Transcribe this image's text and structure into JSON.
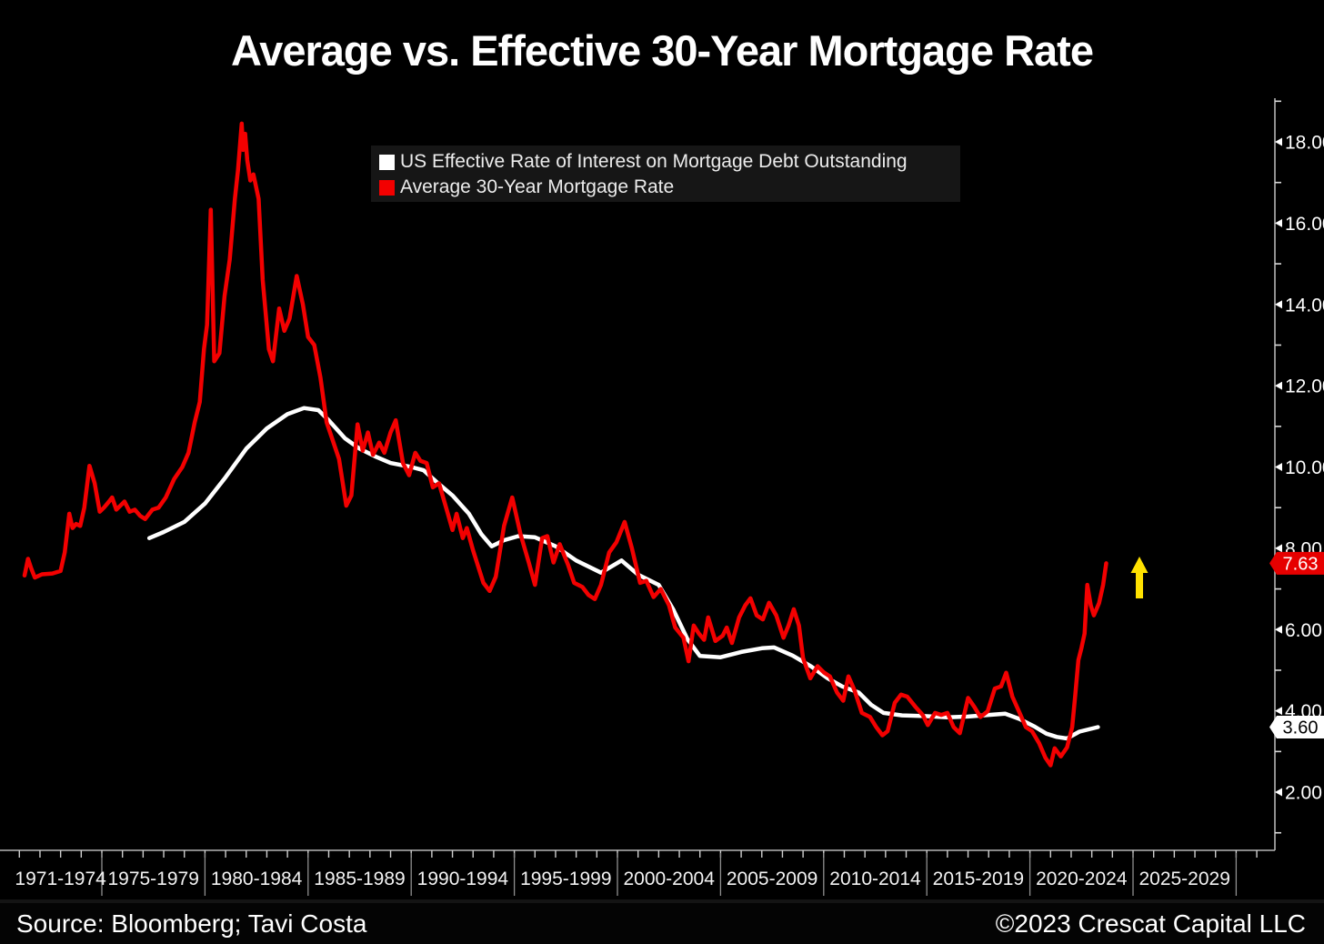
{
  "meta": {
    "title": "Average vs. Effective 30-Year Mortgage Rate"
  },
  "legend": {
    "items": [
      {
        "label": "US Effective Rate of Interest on Mortgage Debt Outstanding",
        "color": "#ffffff"
      },
      {
        "label": "Average 30-Year Mortgage Rate",
        "color": "#f30000"
      }
    ]
  },
  "footer": {
    "source": "Source: Bloomberg; Tavi Costa",
    "copyright": "©2023 Crescat Capital LLC"
  },
  "chart_data": {
    "type": "line",
    "title": "Average vs. Effective 30-Year Mortgage Rate",
    "grid": false,
    "legend_position": "top-center",
    "background_color": "#000000",
    "axis_color": "#b5b5b5",
    "x_categories": [
      "1971-1974",
      "1975-1979",
      "1980-1984",
      "1985-1989",
      "1990-1994",
      "1995-1999",
      "2000-2004",
      "2005-2009",
      "2010-2014",
      "2015-2019",
      "2020-2024",
      "2025-2029"
    ],
    "x_year_lim": [
      1971,
      2032
    ],
    "y_ticks_major": [
      18,
      16,
      14,
      12,
      10,
      8,
      6,
      4,
      2
    ],
    "y_ticks_minor": [
      19,
      17,
      15,
      13,
      11,
      9,
      7,
      5,
      3,
      1
    ],
    "y_tick_decimals": 2,
    "ylim": [
      0.55,
      19.0
    ],
    "annotations": [
      {
        "type": "up-arrow",
        "color": "#ffe100",
        "near_year": 2025.2,
        "at_value": 7.2
      }
    ],
    "series": [
      {
        "name": "US Effective Rate of Interest on Mortgage Debt Outstanding",
        "color": "#ffffff",
        "last_label": "3.60",
        "last_value": 3.6,
        "points": [
          [
            1977.3,
            8.25
          ],
          [
            1978,
            8.4
          ],
          [
            1979,
            8.65
          ],
          [
            1980,
            9.1
          ],
          [
            1981,
            9.75
          ],
          [
            1982,
            10.45
          ],
          [
            1983,
            10.95
          ],
          [
            1984,
            11.3
          ],
          [
            1984.8,
            11.45
          ],
          [
            1985.5,
            11.4
          ],
          [
            1986,
            11.15
          ],
          [
            1986.8,
            10.7
          ],
          [
            1987.5,
            10.45
          ],
          [
            1988.3,
            10.25
          ],
          [
            1989,
            10.1
          ],
          [
            1990,
            10.0
          ],
          [
            1990.6,
            9.92
          ],
          [
            1991.3,
            9.6
          ],
          [
            1992,
            9.3
          ],
          [
            1992.8,
            8.85
          ],
          [
            1993.4,
            8.35
          ],
          [
            1993.9,
            8.05
          ],
          [
            1994.5,
            8.2
          ],
          [
            1995.2,
            8.3
          ],
          [
            1996,
            8.27
          ],
          [
            1997,
            8.05
          ],
          [
            1998,
            7.7
          ],
          [
            1999.2,
            7.4
          ],
          [
            2000.2,
            7.7
          ],
          [
            2001,
            7.35
          ],
          [
            2002,
            7.1
          ],
          [
            2002.7,
            6.5
          ],
          [
            2003.4,
            5.76
          ],
          [
            2004,
            5.35
          ],
          [
            2005,
            5.32
          ],
          [
            2006,
            5.45
          ],
          [
            2007,
            5.54
          ],
          [
            2007.6,
            5.56
          ],
          [
            2008.5,
            5.36
          ],
          [
            2009.4,
            5.09
          ],
          [
            2010.2,
            4.8
          ],
          [
            2010.9,
            4.6
          ],
          [
            2011.7,
            4.45
          ],
          [
            2012.3,
            4.15
          ],
          [
            2012.9,
            3.95
          ],
          [
            2013.8,
            3.89
          ],
          [
            2015,
            3.87
          ],
          [
            2016,
            3.84
          ],
          [
            2017,
            3.86
          ],
          [
            2018.8,
            3.93
          ],
          [
            2019.5,
            3.8
          ],
          [
            2020.2,
            3.62
          ],
          [
            2020.8,
            3.44
          ],
          [
            2021.3,
            3.36
          ],
          [
            2021.8,
            3.32
          ],
          [
            2022.4,
            3.49
          ],
          [
            2023.3,
            3.6
          ]
        ]
      },
      {
        "name": "Average 30-Year Mortgage Rate",
        "color": "#f30000",
        "last_label": "7.63",
        "last_value": 7.63,
        "points": [
          [
            1971.25,
            7.33
          ],
          [
            1971.42,
            7.74
          ],
          [
            1971.58,
            7.5
          ],
          [
            1971.75,
            7.28
          ],
          [
            1972.1,
            7.36
          ],
          [
            1972.6,
            7.38
          ],
          [
            1973.0,
            7.44
          ],
          [
            1973.2,
            7.9
          ],
          [
            1973.42,
            8.85
          ],
          [
            1973.58,
            8.5
          ],
          [
            1973.75,
            8.6
          ],
          [
            1973.95,
            8.55
          ],
          [
            1974.15,
            9.0
          ],
          [
            1974.4,
            10.03
          ],
          [
            1974.65,
            9.6
          ],
          [
            1974.9,
            8.9
          ],
          [
            1975.1,
            9.0
          ],
          [
            1975.35,
            9.15
          ],
          [
            1975.5,
            9.25
          ],
          [
            1975.7,
            8.95
          ],
          [
            1975.9,
            9.05
          ],
          [
            1976.1,
            9.15
          ],
          [
            1976.35,
            8.9
          ],
          [
            1976.6,
            8.95
          ],
          [
            1976.85,
            8.8
          ],
          [
            1977.1,
            8.72
          ],
          [
            1977.45,
            8.95
          ],
          [
            1977.75,
            9.0
          ],
          [
            1978.1,
            9.25
          ],
          [
            1978.5,
            9.7
          ],
          [
            1978.9,
            10.0
          ],
          [
            1979.2,
            10.35
          ],
          [
            1979.5,
            11.1
          ],
          [
            1979.75,
            11.6
          ],
          [
            1979.95,
            12.9
          ],
          [
            1980.1,
            13.5
          ],
          [
            1980.28,
            16.33
          ],
          [
            1980.45,
            12.6
          ],
          [
            1980.7,
            12.8
          ],
          [
            1980.95,
            14.2
          ],
          [
            1981.2,
            15.1
          ],
          [
            1981.45,
            16.6
          ],
          [
            1981.6,
            17.3
          ],
          [
            1981.78,
            18.45
          ],
          [
            1981.85,
            17.8
          ],
          [
            1981.95,
            18.2
          ],
          [
            1982.05,
            17.55
          ],
          [
            1982.2,
            17.05
          ],
          [
            1982.35,
            17.2
          ],
          [
            1982.6,
            16.6
          ],
          [
            1982.8,
            14.6
          ],
          [
            1983.1,
            12.9
          ],
          [
            1983.3,
            12.6
          ],
          [
            1983.6,
            13.9
          ],
          [
            1983.85,
            13.35
          ],
          [
            1984.1,
            13.65
          ],
          [
            1984.45,
            14.7
          ],
          [
            1984.75,
            14.0
          ],
          [
            1985.0,
            13.2
          ],
          [
            1985.3,
            13.0
          ],
          [
            1985.6,
            12.2
          ],
          [
            1985.9,
            11.1
          ],
          [
            1986.2,
            10.65
          ],
          [
            1986.5,
            10.2
          ],
          [
            1986.85,
            9.05
          ],
          [
            1987.1,
            9.3
          ],
          [
            1987.4,
            11.05
          ],
          [
            1987.65,
            10.4
          ],
          [
            1987.9,
            10.85
          ],
          [
            1988.15,
            10.3
          ],
          [
            1988.45,
            10.6
          ],
          [
            1988.7,
            10.35
          ],
          [
            1989.0,
            10.85
          ],
          [
            1989.25,
            11.15
          ],
          [
            1989.6,
            10.1
          ],
          [
            1989.9,
            9.8
          ],
          [
            1990.2,
            10.35
          ],
          [
            1990.45,
            10.15
          ],
          [
            1990.75,
            10.1
          ],
          [
            1991.05,
            9.5
          ],
          [
            1991.35,
            9.6
          ],
          [
            1991.75,
            8.9
          ],
          [
            1992.0,
            8.45
          ],
          [
            1992.2,
            8.85
          ],
          [
            1992.5,
            8.25
          ],
          [
            1992.7,
            8.5
          ],
          [
            1993.0,
            7.95
          ],
          [
            1993.5,
            7.15
          ],
          [
            1993.8,
            6.95
          ],
          [
            1994.1,
            7.3
          ],
          [
            1994.5,
            8.55
          ],
          [
            1994.9,
            9.25
          ],
          [
            1995.3,
            8.35
          ],
          [
            1995.7,
            7.65
          ],
          [
            1996.0,
            7.1
          ],
          [
            1996.35,
            8.25
          ],
          [
            1996.6,
            8.3
          ],
          [
            1996.9,
            7.65
          ],
          [
            1997.2,
            8.1
          ],
          [
            1997.6,
            7.6
          ],
          [
            1997.9,
            7.15
          ],
          [
            1998.3,
            7.05
          ],
          [
            1998.6,
            6.85
          ],
          [
            1998.9,
            6.75
          ],
          [
            1999.2,
            7.1
          ],
          [
            1999.6,
            7.9
          ],
          [
            1999.95,
            8.15
          ],
          [
            2000.35,
            8.65
          ],
          [
            2000.7,
            8.0
          ],
          [
            2001.1,
            7.15
          ],
          [
            2001.4,
            7.2
          ],
          [
            2001.75,
            6.8
          ],
          [
            2002.1,
            7.0
          ],
          [
            2002.5,
            6.6
          ],
          [
            2002.8,
            6.05
          ],
          [
            2003.2,
            5.8
          ],
          [
            2003.45,
            5.22
          ],
          [
            2003.7,
            6.1
          ],
          [
            2003.95,
            5.9
          ],
          [
            2004.2,
            5.75
          ],
          [
            2004.4,
            6.3
          ],
          [
            2004.75,
            5.72
          ],
          [
            2005.1,
            5.85
          ],
          [
            2005.3,
            6.05
          ],
          [
            2005.55,
            5.67
          ],
          [
            2005.9,
            6.3
          ],
          [
            2006.2,
            6.6
          ],
          [
            2006.45,
            6.77
          ],
          [
            2006.75,
            6.35
          ],
          [
            2007.05,
            6.25
          ],
          [
            2007.35,
            6.66
          ],
          [
            2007.7,
            6.35
          ],
          [
            2008.05,
            5.8
          ],
          [
            2008.3,
            6.1
          ],
          [
            2008.55,
            6.5
          ],
          [
            2008.8,
            6.1
          ],
          [
            2009.0,
            5.3
          ],
          [
            2009.35,
            4.8
          ],
          [
            2009.7,
            5.1
          ],
          [
            2010.0,
            4.95
          ],
          [
            2010.3,
            4.85
          ],
          [
            2010.65,
            4.45
          ],
          [
            2010.95,
            4.25
          ],
          [
            2011.2,
            4.85
          ],
          [
            2011.5,
            4.5
          ],
          [
            2011.85,
            3.95
          ],
          [
            2012.25,
            3.85
          ],
          [
            2012.55,
            3.6
          ],
          [
            2012.85,
            3.4
          ],
          [
            2013.1,
            3.5
          ],
          [
            2013.45,
            4.2
          ],
          [
            2013.75,
            4.4
          ],
          [
            2014.05,
            4.35
          ],
          [
            2014.45,
            4.1
          ],
          [
            2014.8,
            3.9
          ],
          [
            2015.05,
            3.65
          ],
          [
            2015.4,
            3.95
          ],
          [
            2015.7,
            3.9
          ],
          [
            2016.0,
            3.95
          ],
          [
            2016.3,
            3.6
          ],
          [
            2016.6,
            3.45
          ],
          [
            2017.0,
            4.32
          ],
          [
            2017.3,
            4.1
          ],
          [
            2017.6,
            3.85
          ],
          [
            2017.95,
            3.99
          ],
          [
            2018.3,
            4.55
          ],
          [
            2018.6,
            4.6
          ],
          [
            2018.85,
            4.94
          ],
          [
            2019.15,
            4.35
          ],
          [
            2019.5,
            3.95
          ],
          [
            2019.8,
            3.6
          ],
          [
            2020.1,
            3.5
          ],
          [
            2020.45,
            3.2
          ],
          [
            2020.75,
            2.85
          ],
          [
            2021.0,
            2.66
          ],
          [
            2021.2,
            3.08
          ],
          [
            2021.5,
            2.88
          ],
          [
            2021.8,
            3.1
          ],
          [
            2022.05,
            3.6
          ],
          [
            2022.2,
            4.4
          ],
          [
            2022.35,
            5.25
          ],
          [
            2022.5,
            5.55
          ],
          [
            2022.65,
            5.9
          ],
          [
            2022.78,
            7.1
          ],
          [
            2022.95,
            6.6
          ],
          [
            2023.1,
            6.35
          ],
          [
            2023.35,
            6.65
          ],
          [
            2023.55,
            7.1
          ],
          [
            2023.7,
            7.63
          ]
        ]
      }
    ]
  }
}
